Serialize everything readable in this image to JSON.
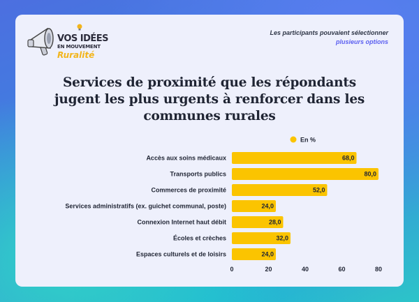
{
  "header": {
    "logo_line1": "VOS IDÉES",
    "logo_line2": "EN MOUVEMENT",
    "logo_line3": "Ruralité",
    "note_prefix": "Les participants pouvaient sélectionner",
    "note_highlight": "plusieurs options"
  },
  "colors": {
    "bar": "#fbc400",
    "text": "#1f2433",
    "highlight": "#5b5ff0",
    "card": "#eef0fc"
  },
  "chart_data": {
    "type": "bar",
    "orientation": "horizontal",
    "title": "Services de proximité que les répondants jugent les plus urgents à renforcer dans les communes rurales",
    "legend": {
      "label": "En %",
      "position": "top-right"
    },
    "categories": [
      "Accès aux soins médicaux",
      "Transports publics",
      "Commerces de proximité",
      "Services administratifs (ex. guichet communal, poste)",
      "Connexion Internet haut débit",
      "Écoles et crèches",
      "Espaces culturels et de loisirs"
    ],
    "values": [
      68.0,
      80.0,
      52.0,
      24.0,
      28.0,
      32.0,
      24.0
    ],
    "value_labels": [
      "68,0",
      "80,0",
      "52,0",
      "24,0",
      "28,0",
      "32,0",
      "24,0"
    ],
    "xlim": [
      0,
      80
    ],
    "xticks": [
      "0",
      "20",
      "40",
      "60",
      "80"
    ]
  }
}
